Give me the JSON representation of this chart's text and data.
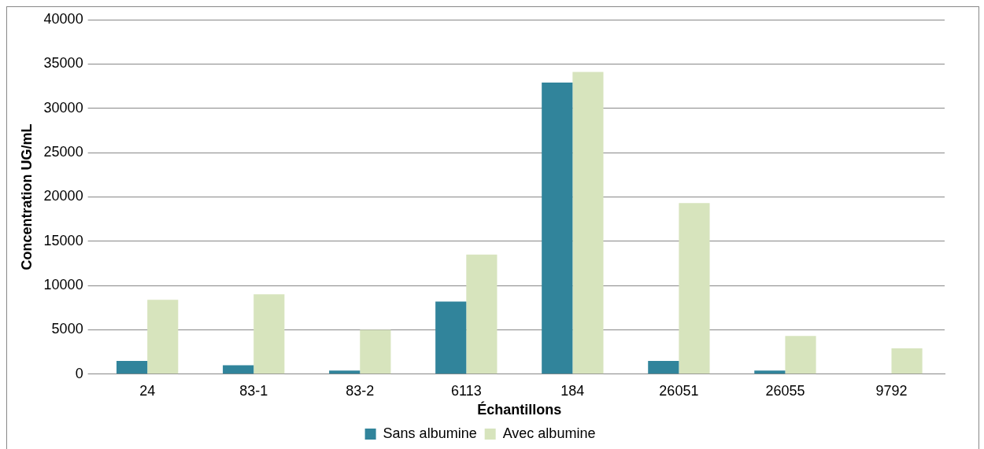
{
  "chart_data": {
    "type": "bar",
    "xlabel": "Échantillons",
    "ylabel": "Concentration UG/mL",
    "categories": [
      "24",
      "83-1",
      "83-2",
      "6113",
      "184",
      "26051",
      "26055",
      "9792"
    ],
    "series": [
      {
        "name": "Sans albumine",
        "color": "#31849b",
        "values": [
          1500,
          1000,
          400,
          8200,
          32900,
          1500,
          400,
          0
        ]
      },
      {
        "name": "Avec albumine",
        "color": "#d7e4bd",
        "values": [
          8400,
          9000,
          5000,
          13500,
          34100,
          19300,
          4300,
          2900
        ]
      }
    ],
    "ylim": [
      0,
      40000
    ],
    "yticks": [
      0,
      5000,
      10000,
      15000,
      20000,
      25000,
      30000,
      35000,
      40000
    ],
    "grid": "y",
    "legend": "bottom"
  }
}
